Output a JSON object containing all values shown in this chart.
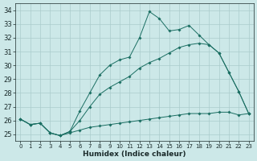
{
  "xlabel": "Humidex (Indice chaleur)",
  "bg_color": "#cce8e8",
  "grid_color": "#aacccc",
  "line_color": "#1a6e62",
  "xlim": [
    -0.5,
    23.5
  ],
  "ylim": [
    24.5,
    34.5
  ],
  "yticks": [
    25,
    26,
    27,
    28,
    29,
    30,
    31,
    32,
    33,
    34
  ],
  "xticks": [
    0,
    1,
    2,
    3,
    4,
    5,
    6,
    7,
    8,
    9,
    10,
    11,
    12,
    13,
    14,
    15,
    16,
    17,
    18,
    19,
    20,
    21,
    22,
    23
  ],
  "line1_x": [
    0,
    1,
    2,
    3,
    4,
    5,
    6,
    7,
    8,
    9,
    10,
    11,
    12,
    13,
    14,
    15,
    16,
    17,
    18,
    19,
    20,
    21,
    22,
    23
  ],
  "line1_y": [
    26.1,
    25.7,
    25.8,
    25.1,
    24.9,
    25.1,
    25.3,
    25.5,
    25.6,
    25.7,
    25.8,
    25.9,
    26.0,
    26.1,
    26.2,
    26.3,
    26.4,
    26.5,
    26.5,
    26.5,
    26.6,
    26.6,
    26.4,
    26.5
  ],
  "line2_x": [
    0,
    1,
    2,
    3,
    4,
    5,
    6,
    7,
    8,
    9,
    10,
    11,
    12,
    13,
    14,
    15,
    16,
    17,
    18,
    19,
    20,
    21,
    22,
    23
  ],
  "line2_y": [
    26.1,
    25.7,
    25.8,
    25.1,
    24.9,
    25.2,
    26.7,
    28.0,
    29.3,
    30.0,
    30.4,
    30.6,
    32.0,
    33.9,
    33.4,
    32.5,
    32.6,
    32.9,
    32.2,
    31.5,
    30.9,
    29.5,
    28.1,
    26.5
  ],
  "line3_x": [
    0,
    1,
    2,
    3,
    4,
    5,
    6,
    7,
    8,
    9,
    10,
    11,
    12,
    13,
    14,
    15,
    16,
    17,
    18,
    19,
    20,
    21,
    22,
    23
  ],
  "line3_y": [
    26.1,
    25.7,
    25.8,
    25.1,
    24.9,
    25.2,
    26.0,
    27.0,
    27.9,
    28.4,
    28.8,
    29.2,
    29.8,
    30.2,
    30.5,
    30.9,
    31.3,
    31.5,
    31.6,
    31.5,
    30.9,
    29.5,
    28.1,
    26.5
  ]
}
